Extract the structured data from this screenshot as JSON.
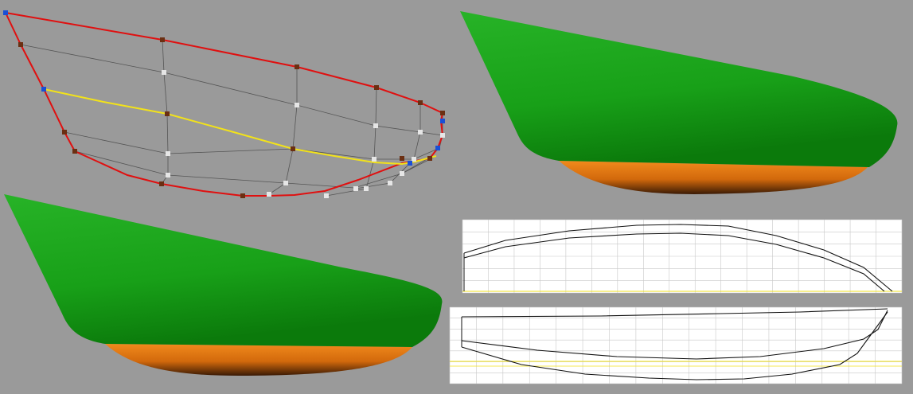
{
  "colors": {
    "background": "#9a9a9a",
    "hull_side": "#1fa51f",
    "hull_bottom": "#e07a10",
    "control_outline": "#e01010",
    "control_selected": "#f2e21a",
    "control_grid": "#555555",
    "point_brown": "#6b2f12",
    "point_white": "#e6e6e6",
    "point_blue": "#1a4fd6",
    "drawing_bg": "#ffffff",
    "drawing_line": "#111111"
  },
  "views": [
    {
      "name": "control-net-view"
    },
    {
      "name": "shaded-hull-view-a"
    },
    {
      "name": "shaded-hull-view-b"
    },
    {
      "name": "lines-drawing-view"
    }
  ],
  "drawing": {
    "upper_ticks": [
      "",
      "",
      "",
      "",
      "",
      "",
      "",
      "",
      "",
      "",
      "",
      "",
      "",
      "",
      "",
      "",
      "",
      ""
    ],
    "lower_ticks": [
      "",
      "",
      "",
      "",
      "",
      "",
      "",
      "",
      "",
      "",
      "",
      "",
      "",
      "",
      "",
      "",
      "",
      ""
    ]
  }
}
